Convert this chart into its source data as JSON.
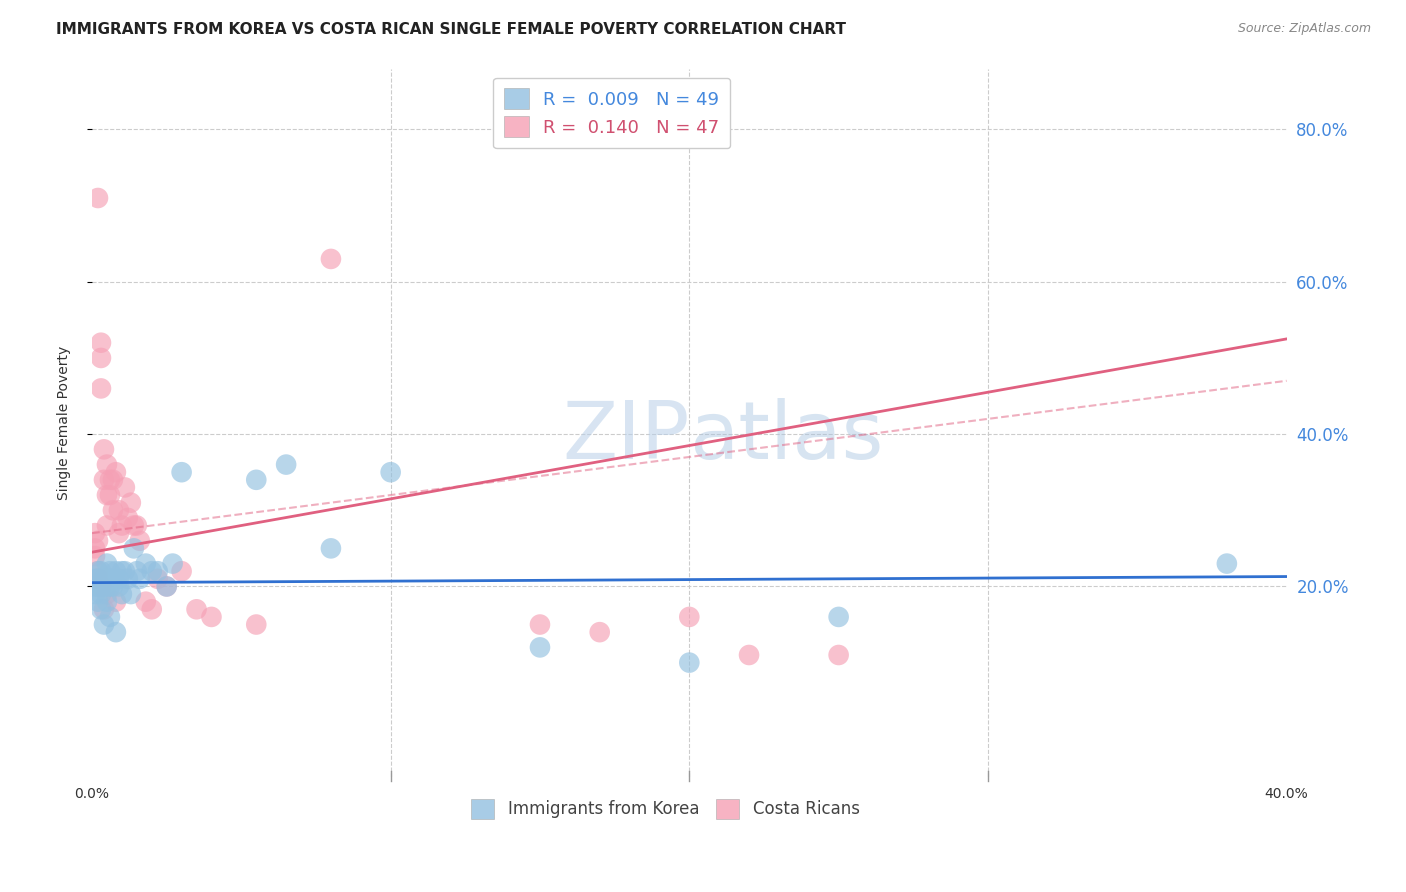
{
  "title": "IMMIGRANTS FROM KOREA VS COSTA RICAN SINGLE FEMALE POVERTY CORRELATION CHART",
  "source": "Source: ZipAtlas.com",
  "ylabel": "Single Female Poverty",
  "right_yticks": [
    "80.0%",
    "60.0%",
    "40.0%",
    "20.0%"
  ],
  "right_ytick_vals": [
    0.8,
    0.6,
    0.4,
    0.2
  ],
  "xlim": [
    0.0,
    0.4
  ],
  "ylim": [
    -0.05,
    0.88
  ],
  "legend_blue_r": "0.009",
  "legend_blue_n": "49",
  "legend_pink_r": "0.140",
  "legend_pink_n": "47",
  "legend_label_blue": "Immigrants from Korea",
  "legend_label_pink": "Costa Ricans",
  "blue_color": "#92c0e0",
  "pink_color": "#f5a0b5",
  "trendline_blue_color": "#3070d0",
  "trendline_pink_color": "#e06080",
  "watermark_zip": "ZIP",
  "watermark_atlas": "atlas",
  "grid_color": "#cccccc",
  "background_color": "#ffffff",
  "title_fontsize": 11,
  "axis_label_fontsize": 10,
  "tick_label_fontsize": 10,
  "right_tick_color": "#4488dd",
  "blue_scatter_x": [
    0.001,
    0.001,
    0.001,
    0.002,
    0.002,
    0.002,
    0.002,
    0.003,
    0.003,
    0.003,
    0.003,
    0.004,
    0.004,
    0.004,
    0.005,
    0.005,
    0.005,
    0.005,
    0.006,
    0.006,
    0.006,
    0.007,
    0.007,
    0.008,
    0.008,
    0.009,
    0.009,
    0.01,
    0.01,
    0.011,
    0.012,
    0.013,
    0.014,
    0.015,
    0.016,
    0.018,
    0.02,
    0.022,
    0.025,
    0.027,
    0.03,
    0.055,
    0.065,
    0.08,
    0.1,
    0.15,
    0.2,
    0.25,
    0.38
  ],
  "blue_scatter_y": [
    0.21,
    0.2,
    0.19,
    0.22,
    0.21,
    0.2,
    0.18,
    0.22,
    0.2,
    0.19,
    0.17,
    0.21,
    0.2,
    0.15,
    0.23,
    0.21,
    0.2,
    0.18,
    0.22,
    0.2,
    0.16,
    0.21,
    0.2,
    0.22,
    0.14,
    0.21,
    0.2,
    0.22,
    0.19,
    0.22,
    0.21,
    0.19,
    0.25,
    0.22,
    0.21,
    0.23,
    0.22,
    0.22,
    0.2,
    0.23,
    0.35,
    0.34,
    0.36,
    0.25,
    0.35,
    0.12,
    0.1,
    0.16,
    0.23
  ],
  "pink_scatter_x": [
    0.001,
    0.001,
    0.001,
    0.002,
    0.002,
    0.002,
    0.002,
    0.003,
    0.003,
    0.003,
    0.003,
    0.004,
    0.004,
    0.004,
    0.005,
    0.005,
    0.005,
    0.005,
    0.006,
    0.006,
    0.007,
    0.007,
    0.008,
    0.008,
    0.009,
    0.009,
    0.01,
    0.011,
    0.012,
    0.013,
    0.014,
    0.015,
    0.016,
    0.018,
    0.02,
    0.022,
    0.025,
    0.03,
    0.035,
    0.04,
    0.055,
    0.08,
    0.15,
    0.17,
    0.2,
    0.22,
    0.25
  ],
  "pink_scatter_y": [
    0.27,
    0.25,
    0.24,
    0.71,
    0.26,
    0.22,
    0.21,
    0.52,
    0.5,
    0.46,
    0.2,
    0.38,
    0.34,
    0.17,
    0.36,
    0.32,
    0.28,
    0.19,
    0.34,
    0.32,
    0.34,
    0.3,
    0.35,
    0.18,
    0.3,
    0.27,
    0.28,
    0.33,
    0.29,
    0.31,
    0.28,
    0.28,
    0.26,
    0.18,
    0.17,
    0.21,
    0.2,
    0.22,
    0.17,
    0.16,
    0.15,
    0.63,
    0.15,
    0.14,
    0.16,
    0.11,
    0.11
  ]
}
